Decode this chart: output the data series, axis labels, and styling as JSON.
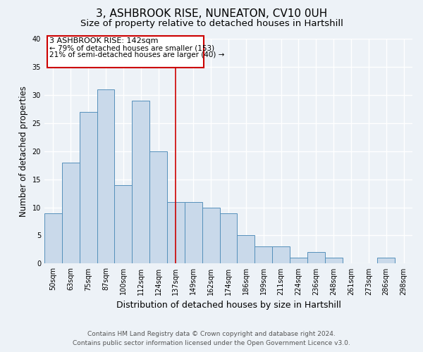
{
  "title": "3, ASHBROOK RISE, NUNEATON, CV10 0UH",
  "subtitle": "Size of property relative to detached houses in Hartshill",
  "xlabel": "Distribution of detached houses by size in Hartshill",
  "ylabel": "Number of detached properties",
  "bar_labels": [
    "50sqm",
    "63sqm",
    "75sqm",
    "87sqm",
    "100sqm",
    "112sqm",
    "124sqm",
    "137sqm",
    "149sqm",
    "162sqm",
    "174sqm",
    "186sqm",
    "199sqm",
    "211sqm",
    "224sqm",
    "236sqm",
    "248sqm",
    "261sqm",
    "273sqm",
    "286sqm",
    "298sqm"
  ],
  "bar_values": [
    9,
    18,
    27,
    31,
    14,
    29,
    20,
    11,
    11,
    10,
    9,
    5,
    3,
    3,
    1,
    2,
    1,
    0,
    0,
    1,
    0
  ],
  "bar_color": "#c9d9ea",
  "bar_edge_color": "#5590bb",
  "ylim": [
    0,
    40
  ],
  "yticks": [
    0,
    5,
    10,
    15,
    20,
    25,
    30,
    35,
    40
  ],
  "vline_x_index": 7,
  "vline_color": "#cc0000",
  "annotation_title": "3 ASHBROOK RISE: 142sqm",
  "annotation_line1": "← 79% of detached houses are smaller (153)",
  "annotation_line2": "21% of semi-detached houses are larger (40) →",
  "annotation_box_color": "#ffffff",
  "annotation_box_edge": "#cc0000",
  "footer_line1": "Contains HM Land Registry data © Crown copyright and database right 2024.",
  "footer_line2": "Contains public sector information licensed under the Open Government Licence v3.0.",
  "bg_color": "#edf2f7",
  "plot_bg_color": "#edf2f7",
  "grid_color": "#ffffff",
  "title_fontsize": 11,
  "subtitle_fontsize": 9.5,
  "xlabel_fontsize": 9,
  "ylabel_fontsize": 8.5,
  "tick_fontsize": 7,
  "footer_fontsize": 6.5,
  "ann_fontsize_title": 8,
  "ann_fontsize_body": 7.5
}
